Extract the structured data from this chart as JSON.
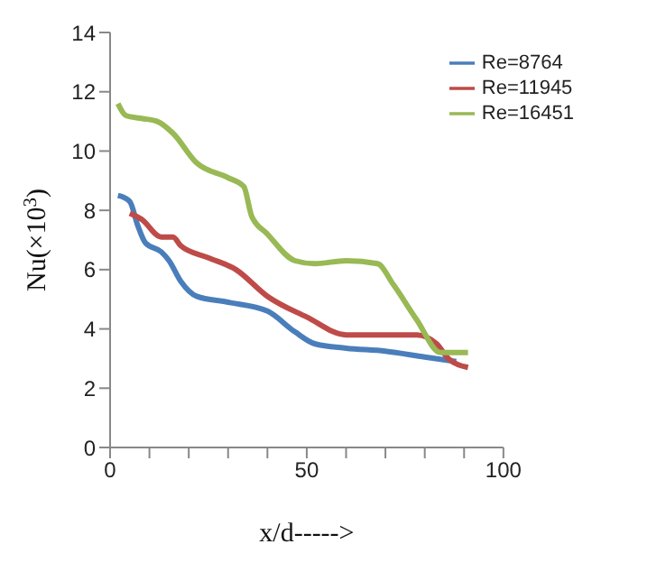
{
  "chart_data": {
    "type": "line",
    "xlabel": "x/d----->",
    "ylabel": "Nu(×10$^{3}$)",
    "xlim": [
      0,
      100
    ],
    "xticks": [
      0,
      {
        "value": 10,
        "label": null
      },
      {
        "value": 20,
        "label": null
      },
      {
        "value": 30,
        "label": null
      },
      {
        "value": 40,
        "label": null
      },
      50,
      {
        "value": 60,
        "label": null
      },
      {
        "value": 70,
        "label": null
      },
      {
        "value": 80,
        "label": null
      },
      {
        "value": 90,
        "label": null
      },
      100
    ],
    "ylim": [
      0,
      14
    ],
    "yticks": [
      0,
      2,
      4,
      6,
      8,
      10,
      12,
      14
    ],
    "grid": false,
    "legend": "top right",
    "marker": "none",
    "line_style": "solid",
    "series": [
      {
        "name": "Re=8764",
        "color": "#4a7ebb",
        "x": [
          2,
          5,
          7,
          9,
          13,
          15,
          18,
          22,
          30,
          40,
          47,
          52,
          60,
          70,
          80,
          88
        ],
        "values": [
          8.5,
          8.3,
          7.5,
          6.9,
          6.6,
          6.3,
          5.6,
          5.1,
          4.9,
          4.6,
          3.9,
          3.5,
          3.35,
          3.25,
          3.05,
          2.9
        ]
      },
      {
        "name": "Re=11945",
        "color": "#be4b48",
        "x": [
          5,
          8,
          13,
          16,
          18,
          25,
          32,
          40,
          50,
          60,
          70,
          78,
          83,
          86,
          91
        ],
        "values": [
          7.9,
          7.7,
          7.1,
          7.1,
          6.8,
          6.4,
          6.0,
          5.1,
          4.4,
          3.8,
          3.8,
          3.8,
          3.5,
          3.0,
          2.7
        ]
      },
      {
        "name": "Re=16451",
        "color": "#98b954",
        "x": [
          2,
          4,
          8,
          12,
          16,
          22,
          30,
          34,
          36,
          40,
          47,
          52,
          60,
          68,
          72,
          78,
          84,
          91
        ],
        "values": [
          11.6,
          11.2,
          11.1,
          11.0,
          10.6,
          9.6,
          9.1,
          8.8,
          7.8,
          7.2,
          6.3,
          6.2,
          6.3,
          6.2,
          5.5,
          4.3,
          3.2,
          3.2
        ]
      }
    ]
  }
}
